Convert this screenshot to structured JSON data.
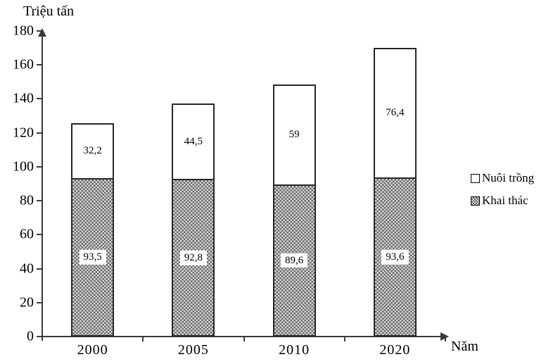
{
  "chart_data": {
    "type": "bar",
    "stacked": true,
    "ylabel": "Triệu tấn",
    "xlabel": "Năm",
    "categories": [
      "2000",
      "2005",
      "2010",
      "2020"
    ],
    "series": [
      {
        "name": "Khai thác",
        "swatch": "hatched-gray",
        "values": [
          93.5,
          92.8,
          89.6,
          93.6
        ],
        "labels": [
          "93,5",
          "92,8",
          "89,6",
          "93,6"
        ]
      },
      {
        "name": "Nuôi trồng",
        "swatch": "white",
        "values": [
          32.2,
          44.5,
          59,
          76.4
        ],
        "labels": [
          "32,2",
          "44,5",
          "59",
          "76,4"
        ]
      }
    ],
    "ylim": [
      0,
      180
    ],
    "ytick_step": 20,
    "yticks": [
      "0",
      "20",
      "40",
      "60",
      "80",
      "100",
      "120",
      "140",
      "160",
      "180"
    ],
    "grid": false,
    "legend": {
      "position": "right",
      "items": [
        {
          "label": "Nuôi trồng",
          "swatch": "white"
        },
        {
          "label": "Khai thác",
          "swatch": "hatched-gray"
        }
      ]
    }
  },
  "colors": {
    "axis": "#3a3a3a",
    "text": "#000000",
    "bar_border": "#262626",
    "hatch_dark": "#6e6e6e",
    "hatch_light": "#d2d2d2",
    "white_fill": "#ffffff"
  }
}
